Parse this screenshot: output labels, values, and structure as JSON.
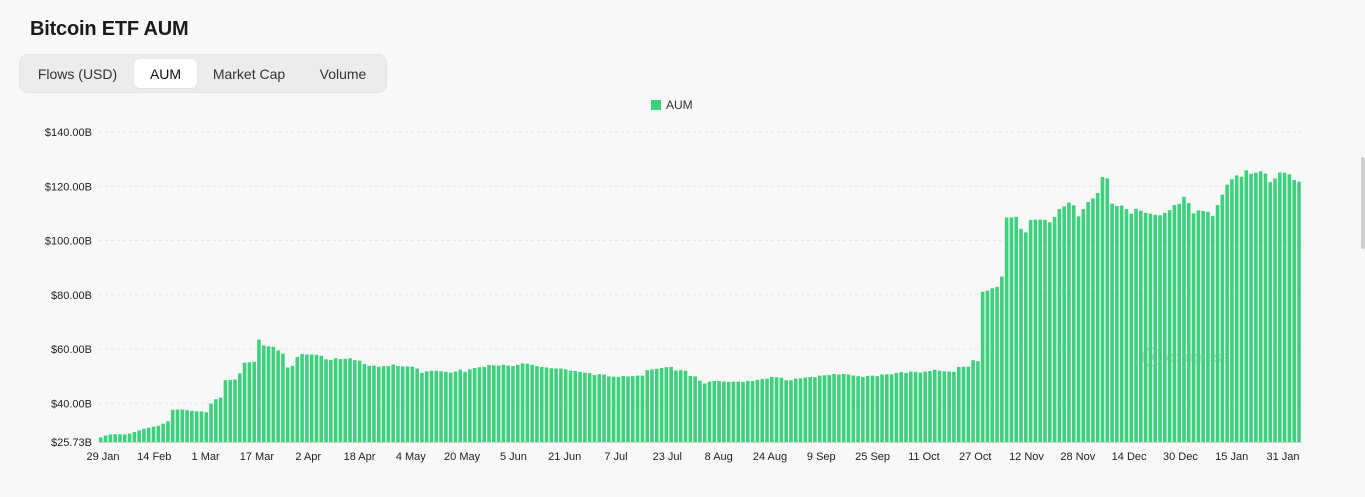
{
  "title": "Bitcoin ETF AUM",
  "tabs": [
    {
      "label": "Flows (USD)",
      "active": false
    },
    {
      "label": "AUM",
      "active": true
    },
    {
      "label": "Market Cap",
      "active": false
    },
    {
      "label": "Volume",
      "active": false
    }
  ],
  "watermark": "coinglass",
  "chart_data": {
    "type": "bar",
    "title": "",
    "xlabel": "",
    "ylabel": "",
    "legend": {
      "entries": [
        "AUM"
      ],
      "placement": "top-center"
    },
    "color": "#3dd17d",
    "grid": true,
    "ylim": [
      25.73,
      140
    ],
    "y_ticks": [
      25.73,
      40,
      60,
      80,
      100,
      120,
      140
    ],
    "y_tick_labels": [
      "$25.73B",
      "$40.00B",
      "$60.00B",
      "$80.00B",
      "$100.00B",
      "$120.00B",
      "$140.00B"
    ],
    "x_tick_labels": [
      "29 Jan",
      "14 Feb",
      "1 Mar",
      "17 Mar",
      "2 Apr",
      "18 Apr",
      "4 May",
      "20 May",
      "5 Jun",
      "21 Jun",
      "7 Jul",
      "23 Jul",
      "8 Aug",
      "24 Aug",
      "9 Sep",
      "25 Sep",
      "11 Oct",
      "27 Oct",
      "12 Nov",
      "28 Nov",
      "14 Dec",
      "30 Dec",
      "15 Jan",
      "31 Jan"
    ],
    "series": [
      {
        "name": "AUM",
        "unit": "USD billions",
        "values": [
          27.4,
          28.1,
          28.5,
          28.6,
          28.6,
          28.5,
          28.9,
          29.4,
          30.0,
          30.6,
          31.0,
          31.4,
          31.7,
          32.5,
          33.4,
          37.6,
          37.7,
          37.7,
          37.5,
          37.2,
          37.0,
          37.0,
          36.7,
          39.9,
          41.5,
          42.1,
          48.5,
          48.6,
          48.8,
          51.0,
          55.0,
          55.1,
          55.3,
          63.5,
          61.3,
          61.0,
          60.8,
          59.5,
          58.3,
          53.2,
          53.8,
          57.1,
          58.2,
          58.0,
          58.0,
          57.9,
          57.5,
          56.2,
          56.0,
          56.6,
          56.3,
          56.4,
          56.6,
          55.9,
          55.7,
          54.5,
          53.8,
          53.9,
          53.5,
          53.7,
          53.7,
          54.3,
          53.8,
          53.6,
          53.6,
          53.5,
          52.8,
          51.2,
          51.8,
          52.0,
          52.0,
          51.8,
          51.6,
          51.3,
          51.7,
          52.4,
          51.6,
          52.5,
          53.0,
          53.3,
          53.4,
          54.1,
          54.0,
          53.9,
          54.2,
          53.9,
          53.7,
          54.2,
          54.7,
          54.6,
          54.2,
          53.7,
          53.4,
          53.2,
          52.9,
          52.8,
          52.8,
          52.5,
          52.0,
          51.9,
          51.6,
          51.3,
          51.1,
          50.4,
          50.7,
          50.6,
          49.9,
          49.8,
          49.7,
          50.1,
          49.9,
          50.0,
          50.2,
          50.2,
          52.2,
          52.5,
          52.7,
          53.0,
          53.3,
          53.4,
          52.1,
          52.2,
          52.0,
          50.1,
          49.9,
          48.3,
          47.3,
          48.0,
          48.2,
          48.2,
          48.0,
          47.9,
          48.0,
          48.0,
          47.9,
          48.3,
          48.2,
          48.6,
          49.0,
          49.1,
          49.7,
          49.6,
          49.4,
          48.5,
          48.5,
          49.1,
          49.2,
          49.5,
          49.7,
          49.6,
          50.2,
          50.3,
          50.4,
          50.8,
          50.6,
          50.8,
          50.6,
          50.2,
          50.0,
          49.7,
          50.1,
          50.2,
          50.0,
          50.6,
          50.7,
          50.7,
          51.2,
          51.5,
          51.2,
          51.7,
          51.6,
          51.3,
          51.7,
          51.9,
          52.4,
          52.0,
          51.8,
          51.7,
          51.6,
          53.4,
          53.5,
          53.5,
          55.9,
          55.5,
          81.1,
          81.5,
          82.4,
          82.9,
          86.7,
          108.5,
          108.5,
          108.7,
          104.3,
          103.0,
          107.6,
          107.7,
          107.7,
          107.6,
          106.7,
          108.7,
          111.6,
          112.6,
          114.0,
          113.0,
          108.9,
          111.6,
          114.2,
          115.5,
          117.5,
          123.4,
          122.9,
          113.6,
          112.7,
          112.9,
          111.6,
          109.9,
          111.7,
          111.0,
          110.2,
          109.9,
          109.5,
          109.3,
          110.2,
          111.2,
          113.1,
          113.5,
          116.1,
          113.8,
          110.0,
          111.1,
          110.9,
          110.6,
          109.0,
          113.1,
          116.9,
          120.6,
          122.6,
          124.0,
          123.5,
          125.9,
          124.6,
          125.0,
          125.5,
          124.7,
          121.5,
          122.9,
          125.1,
          125.0,
          124.4,
          122.3,
          121.7
        ]
      }
    ]
  }
}
